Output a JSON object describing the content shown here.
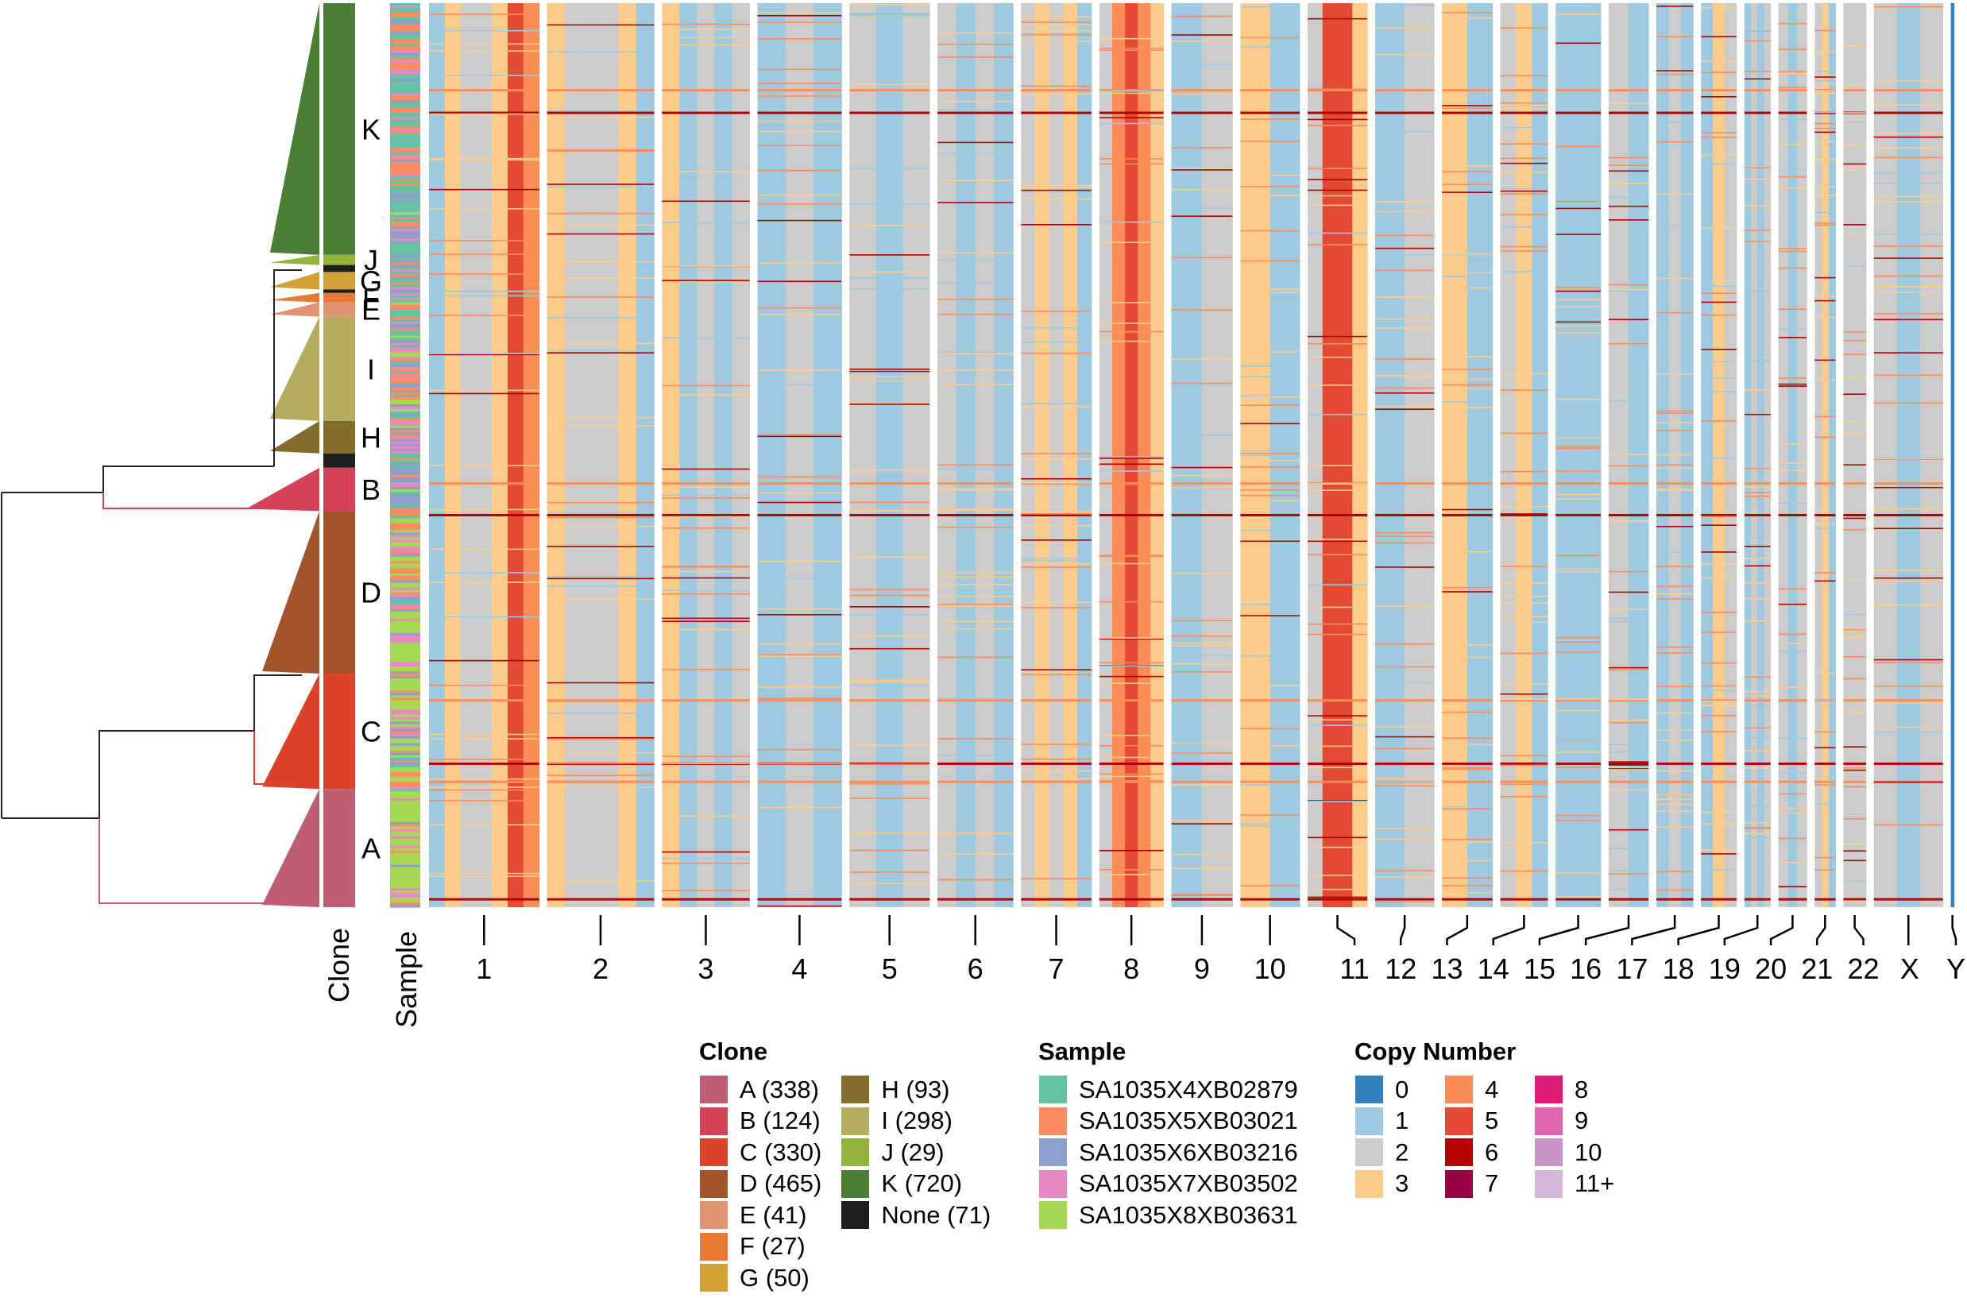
{
  "chart_data": {
    "type": "heatmap",
    "title": "",
    "description": "Single-cell copy number heatmap with clone dendrogram, clone and sample annotation tracks",
    "n_cells": 2586,
    "row_annotations": {
      "clone_track_label": "Clone",
      "sample_track_label": "Sample"
    },
    "clone_order_top_to_bottom": [
      "K",
      "J",
      "None",
      "G",
      "None",
      "F",
      "E",
      "I",
      "H",
      "None",
      "B",
      "D",
      "C",
      "A"
    ],
    "clone_labels_on_plot": [
      "K",
      "J",
      "G",
      "F",
      "E",
      "I",
      "H",
      "B",
      "D",
      "C",
      "A"
    ],
    "clone_segment_sizes_top_to_bottom": [
      720,
      29,
      20,
      50,
      10,
      27,
      41,
      298,
      93,
      41,
      124,
      465,
      330,
      338
    ],
    "clone_segment_ids_top_to_bottom": [
      "K",
      "J",
      "None",
      "G",
      "None",
      "F",
      "E",
      "I",
      "H",
      "None",
      "B",
      "D",
      "C",
      "A"
    ],
    "chromosomes": [
      "1",
      "2",
      "3",
      "4",
      "5",
      "6",
      "7",
      "8",
      "9",
      "10",
      "11",
      "12",
      "13",
      "14",
      "15",
      "16",
      "17",
      "18",
      "19",
      "20",
      "21",
      "22",
      "X",
      "Y"
    ],
    "chromosome_relative_widths": [
      249,
      242,
      198,
      190,
      181,
      171,
      159,
      145,
      138,
      134,
      135,
      133,
      114,
      107,
      102,
      90,
      83,
      80,
      59,
      64,
      47,
      51,
      156,
      57
    ],
    "xlabel": "",
    "ylabel": "",
    "chromosome_profiles": {
      "description": "Dominant copy-number state per arm-segment across cells (left to right within chromosome)",
      "1": [
        1,
        3,
        2,
        2,
        3,
        5,
        4
      ],
      "2": [
        3,
        2,
        2,
        2,
        3,
        1
      ],
      "3": [
        3,
        1,
        2,
        1,
        2
      ],
      "4": [
        1,
        2,
        1
      ],
      "5": [
        2,
        1,
        2
      ],
      "6": [
        2,
        1,
        2,
        1
      ],
      "7": [
        2,
        3,
        2,
        3,
        1
      ],
      "8": [
        2,
        4,
        5,
        4,
        3
      ],
      "9": [
        1,
        2
      ],
      "10": [
        3,
        1
      ],
      "11": [
        2,
        5,
        5,
        3
      ],
      "12": [
        1,
        2
      ],
      "13": [
        3,
        1
      ],
      "14": [
        2,
        3,
        1
      ],
      "15": [
        1
      ],
      "16": [
        2,
        1
      ],
      "17": [
        1,
        2,
        1
      ],
      "18": [
        1,
        3,
        2
      ],
      "19": [
        1,
        2,
        1,
        2
      ],
      "20": [
        2,
        1,
        2
      ],
      "21": [
        2,
        3,
        1
      ],
      "22": [
        2
      ],
      "X": [
        2,
        1,
        2
      ],
      "Y": [
        0
      ]
    },
    "global_gain_row_fraction": [
      0.095,
      0.12,
      0.53,
      0.565,
      0.77,
      0.84,
      0.86,
      0.99
    ]
  },
  "legends": {
    "clone": {
      "title": "Clone",
      "items": [
        {
          "label": "A (338)",
          "color": "#bf5e73"
        },
        {
          "label": "B (124)",
          "color": "#d6425b"
        },
        {
          "label": "C (330)",
          "color": "#db4228"
        },
        {
          "label": "D (465)",
          "color": "#a4542d"
        },
        {
          "label": "E (41)",
          "color": "#e19473"
        },
        {
          "label": "F (27)",
          "color": "#e57a35"
        },
        {
          "label": "G (50)",
          "color": "#d4a137"
        },
        {
          "label": "H (93)",
          "color": "#836d2c"
        },
        {
          "label": "I (298)",
          "color": "#b5ad5d"
        },
        {
          "label": "J (29)",
          "color": "#92b43c"
        },
        {
          "label": "K (720)",
          "color": "#4b7e37"
        },
        {
          "label": "None (71)",
          "color": "#1e1e1e"
        }
      ]
    },
    "sample": {
      "title": "Sample",
      "items": [
        {
          "label": "SA1035X4XB02879",
          "color": "#66c2a5"
        },
        {
          "label": "SA1035X5XB03021",
          "color": "#fc8d62"
        },
        {
          "label": "SA1035X6XB03216",
          "color": "#8da0cb"
        },
        {
          "label": "SA1035X7XB03502",
          "color": "#e78ac3"
        },
        {
          "label": "SA1035X8XB03631",
          "color": "#a6d854"
        }
      ]
    },
    "copy_number": {
      "title": "Copy Number",
      "items": [
        {
          "label": "0",
          "color": "#3182bd"
        },
        {
          "label": "1",
          "color": "#9ecae1"
        },
        {
          "label": "2",
          "color": "#cccccc"
        },
        {
          "label": "3",
          "color": "#fdcc8a"
        },
        {
          "label": "4",
          "color": "#fc8d59"
        },
        {
          "label": "5",
          "color": "#e34a33"
        },
        {
          "label": "6",
          "color": "#b30000"
        },
        {
          "label": "7",
          "color": "#980043"
        },
        {
          "label": "8",
          "color": "#dd1c77"
        },
        {
          "label": "9",
          "color": "#df65b0"
        },
        {
          "label": "10",
          "color": "#c994c7"
        },
        {
          "label": "11+",
          "color": "#d4b9da"
        }
      ]
    }
  }
}
